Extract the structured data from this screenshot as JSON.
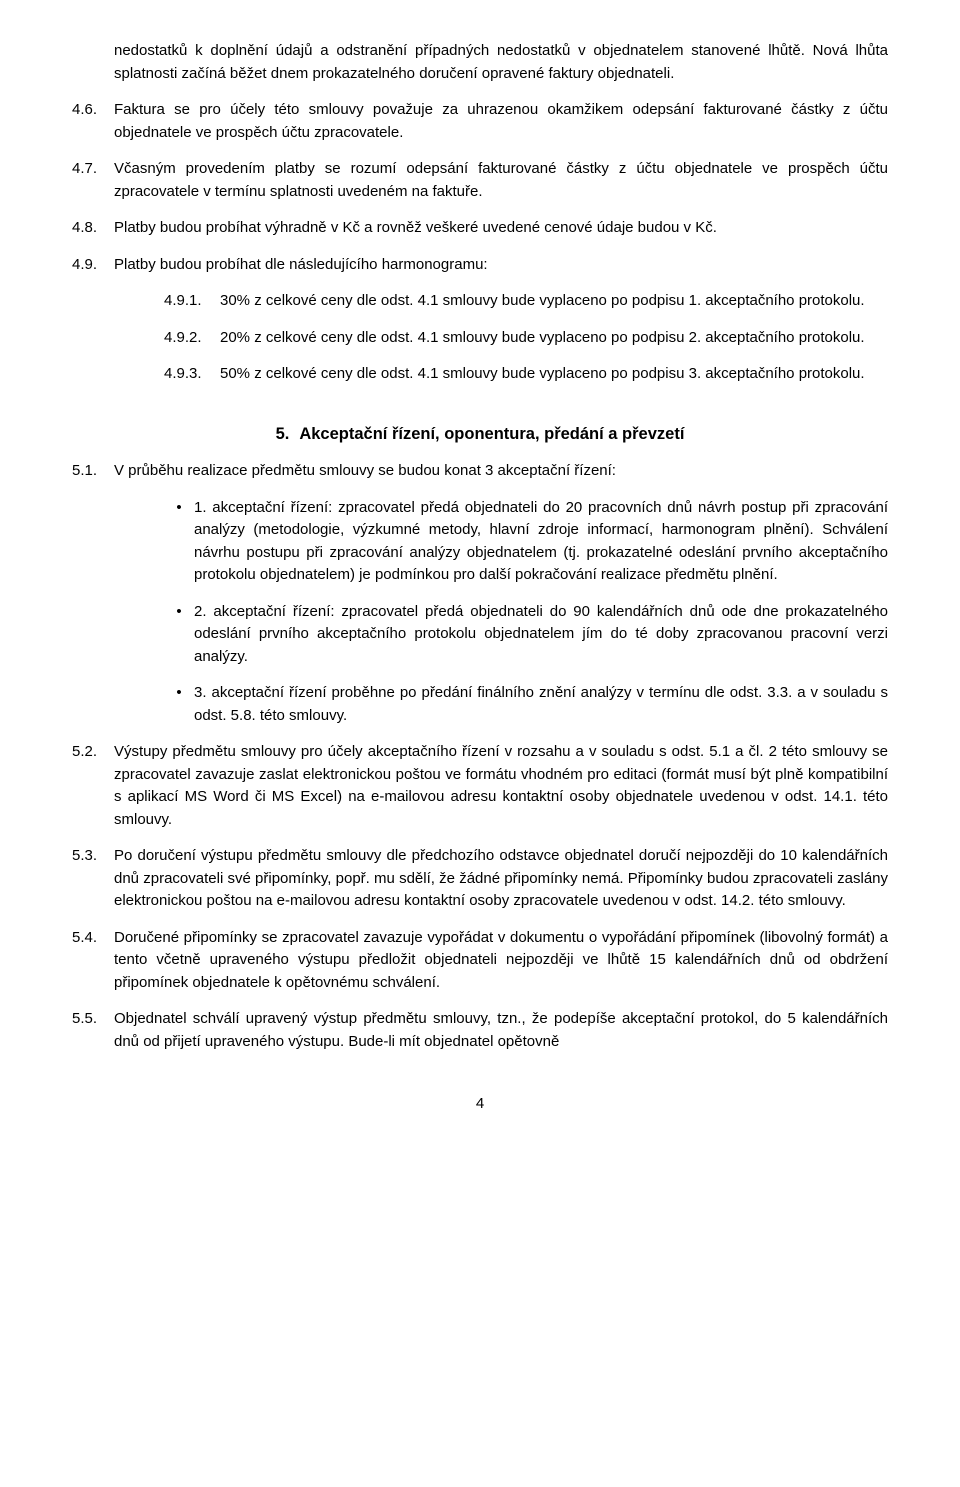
{
  "para_cont": "nedostatků k doplnění údajů a odstranění případných nedostatků v objednatelem stanovené lhůtě. Nová lhůta splatnosti začíná běžet dnem prokazatelného doručení opravené faktury objednateli.",
  "items4": [
    {
      "num": "4.6.",
      "text": "Faktura se pro účely této smlouvy považuje za uhrazenou okamžikem odepsání fakturované částky z účtu objednatele ve prospěch účtu zpracovatele."
    },
    {
      "num": "4.7.",
      "text": "Včasným provedením platby se rozumí odepsání fakturované částky z účtu objednatele ve prospěch účtu zpracovatele v termínu splatnosti uvedeném na faktuře."
    },
    {
      "num": "4.8.",
      "text": "Platby budou probíhat výhradně v Kč a rovněž veškeré uvedené cenové údaje budou v Kč."
    },
    {
      "num": "4.9.",
      "text": "Platby budou probíhat dle následujícího harmonogramu:"
    }
  ],
  "sub49": [
    {
      "num": "4.9.1.",
      "text": "30% z celkové ceny dle odst. 4.1 smlouvy bude vyplaceno po podpisu 1. akceptačního protokolu."
    },
    {
      "num": "4.9.2.",
      "text": "20% z celkové ceny dle odst. 4.1 smlouvy bude vyplaceno po podpisu 2. akceptačního protokolu."
    },
    {
      "num": "4.9.3.",
      "text": "50% z celkové ceny dle odst. 4.1 smlouvy bude vyplaceno po podpisu 3. akceptačního protokolu."
    }
  ],
  "section5": {
    "num": "5.",
    "title": "Akceptační řízení, oponentura, předání a převzetí"
  },
  "item51": {
    "num": "5.1.",
    "text": "V průběhu realizace předmětu smlouvy se budou konat 3 akceptační řízení:"
  },
  "bullets51": [
    "1. akceptační řízení: zpracovatel předá objednateli do 20 pracovních dnů návrh postup při zpracování analýzy (metodologie, výzkumné metody, hlavní zdroje informací, harmonogram plnění). Schválení návrhu postupu při zpracování analýzy objednatelem (tj. prokazatelné odeslání prvního akceptačního protokolu objednatelem) je podmínkou pro další pokračování realizace předmětu plnění.",
    "2. akceptační řízení: zpracovatel předá objednateli do 90 kalendářních dnů ode dne prokazatelného odeslání prvního akceptačního protokolu objednatelem jím do té doby zpracovanou pracovní verzi analýzy.",
    "3. akceptační řízení proběhne po předání finálního znění analýzy v termínu dle odst. 3.3. a v souladu s odst. 5.8. této smlouvy."
  ],
  "items5rest": [
    {
      "num": "5.2.",
      "text": "Výstupy předmětu smlouvy pro účely akceptačního řízení v rozsahu a v souladu s odst. 5.1 a čl. 2 této smlouvy se zpracovatel zavazuje zaslat elektronickou poštou ve formátu vhodném pro editaci (formát musí být plně kompatibilní s aplikací MS Word či MS Excel) na e-mailovou adresu kontaktní osoby objednatele uvedenou v odst. 14.1. této smlouvy."
    },
    {
      "num": "5.3.",
      "text": "Po doručení výstupu předmětu smlouvy dle předchozího odstavce objednatel doručí nejpozději do 10 kalendářních dnů zpracovateli své připomínky, popř. mu sdělí, že žádné připomínky nemá. Připomínky budou zpracovateli zaslány elektronickou poštou na e-mailovou adresu kontaktní osoby zpracovatele uvedenou v odst. 14.2. této smlouvy."
    },
    {
      "num": "5.4.",
      "text": "Doručené připomínky se zpracovatel zavazuje vypořádat v dokumentu o vypořádání připomínek (libovolný formát) a tento včetně upraveného výstupu předložit objednateli nejpozději ve lhůtě 15 kalendářních dnů od obdržení připomínek objednatele k opětovnému schválení."
    },
    {
      "num": "5.5.",
      "text": "Objednatel schválí upravený výstup předmětu smlouvy, tzn., že podepíše akceptační protokol, do 5 kalendářních dnů od přijetí upraveného výstupu. Bude-li mít objednatel opětovně"
    }
  ],
  "page_number": "4"
}
